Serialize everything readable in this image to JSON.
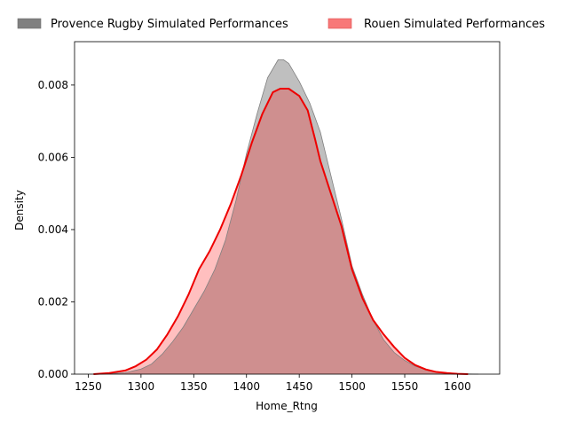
{
  "chart_data": {
    "type": "area",
    "title": "",
    "xlabel": "Home_Rtng",
    "ylabel": "Density",
    "xlim": [
      1237,
      1640
    ],
    "ylim": [
      0,
      0.0092
    ],
    "x_ticks": [
      1250,
      1300,
      1350,
      1400,
      1450,
      1500,
      1550,
      1600
    ],
    "x_tick_labels": [
      "1250",
      "1300",
      "1350",
      "1400",
      "1450",
      "1500",
      "1550",
      "1600"
    ],
    "y_ticks": [
      0,
      0.002,
      0.004,
      0.006,
      0.008
    ],
    "y_tick_labels": [
      "0.000",
      "0.002",
      "0.004",
      "0.006",
      "0.008"
    ],
    "grid": false,
    "legend_position": "top, outside plot",
    "series": [
      {
        "name": "Provence Rugby Simulated Performances",
        "legend_swatch_color": "#808080",
        "fill_color": "#808080",
        "fill_opacity": 0.5,
        "line_color": "#808080",
        "x": [
          1255,
          1270,
          1285,
          1300,
          1310,
          1320,
          1330,
          1340,
          1350,
          1360,
          1370,
          1380,
          1390,
          1400,
          1410,
          1420,
          1430,
          1435,
          1440,
          1450,
          1460,
          1470,
          1480,
          1490,
          1500,
          1510,
          1520,
          1530,
          1540,
          1550,
          1560,
          1570,
          1580,
          1590,
          1600,
          1610,
          1620
        ],
        "y": [
          0,
          1e-05,
          4e-05,
          0.00014,
          0.00028,
          0.00055,
          0.0009,
          0.0013,
          0.0018,
          0.0023,
          0.0029,
          0.0037,
          0.0048,
          0.0061,
          0.0072,
          0.0082,
          0.0087,
          0.0087,
          0.0086,
          0.0081,
          0.0075,
          0.0067,
          0.0055,
          0.0043,
          0.003,
          0.0022,
          0.0015,
          0.00095,
          0.0006,
          0.00038,
          0.00022,
          0.00012,
          6e-05,
          2e-05,
          1e-05,
          5e-06,
          0
        ]
      },
      {
        "name": "Rouen Simulated Performances",
        "legend_swatch_color": "#f87878",
        "fill_color": "#ff0000",
        "fill_opacity": 0.25,
        "line_color": "#ee0000",
        "x": [
          1255,
          1270,
          1285,
          1295,
          1305,
          1315,
          1325,
          1335,
          1345,
          1355,
          1365,
          1375,
          1385,
          1395,
          1405,
          1415,
          1425,
          1432,
          1440,
          1450,
          1458,
          1465,
          1470,
          1480,
          1490,
          1500,
          1510,
          1520,
          1530,
          1540,
          1550,
          1560,
          1570,
          1580,
          1590,
          1600,
          1610
        ],
        "y": [
          0,
          3e-05,
          0.0001,
          0.00022,
          0.0004,
          0.00068,
          0.0011,
          0.0016,
          0.0022,
          0.0029,
          0.0034,
          0.004,
          0.0047,
          0.0055,
          0.0064,
          0.0072,
          0.0078,
          0.0079,
          0.0079,
          0.0077,
          0.0073,
          0.0065,
          0.0059,
          0.005,
          0.0041,
          0.0029,
          0.0021,
          0.0015,
          0.0011,
          0.00075,
          0.00045,
          0.00025,
          0.00013,
          6e-05,
          3e-05,
          1e-05,
          0
        ]
      }
    ]
  }
}
